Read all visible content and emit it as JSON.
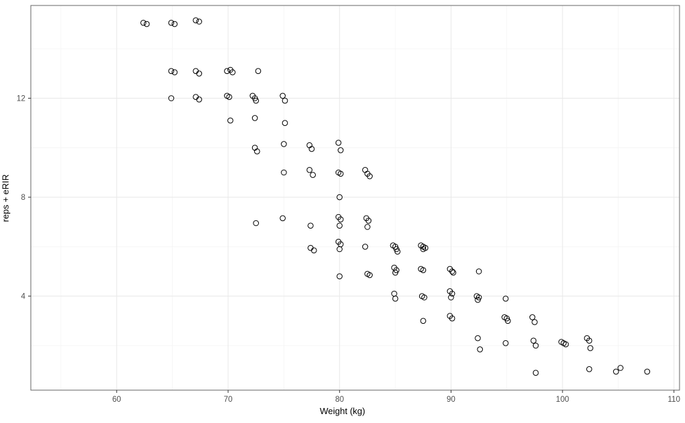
{
  "chart_data": {
    "type": "scatter",
    "title": "",
    "xlabel": "Weight (kg)",
    "ylabel": "reps + eRIR",
    "x_ticks": [
      60,
      70,
      80,
      90,
      100,
      110
    ],
    "y_ticks": [
      4,
      8,
      12
    ],
    "x_minor": [
      55,
      65,
      75,
      85,
      95,
      105
    ],
    "y_minor": [
      2,
      6,
      10,
      14
    ],
    "xlim": [
      52.3,
      110.5
    ],
    "ylim": [
      0.2,
      15.75
    ],
    "legend": "none",
    "grid": "major-and-faint-minor",
    "marker": "open-circle",
    "marker_radius_px": 3.8,
    "point_color": "#000000",
    "grid_major_color": "#e8e8e8",
    "grid_minor_color": "#f4f4f4",
    "panel_border_color": "#666666",
    "tick_color": "#333333",
    "tick_label_color": "#4d4d4d",
    "background": "#ffffff",
    "points": [
      [
        62.4,
        15.05
      ],
      [
        62.7,
        15.0
      ],
      [
        64.9,
        15.05
      ],
      [
        65.2,
        15.0
      ],
      [
        67.1,
        15.15
      ],
      [
        67.4,
        15.1
      ],
      [
        64.9,
        13.1
      ],
      [
        65.2,
        13.05
      ],
      [
        67.1,
        13.1
      ],
      [
        67.4,
        13.0
      ],
      [
        69.9,
        13.1
      ],
      [
        70.2,
        13.15
      ],
      [
        70.4,
        13.05
      ],
      [
        72.7,
        13.1
      ],
      [
        64.9,
        12.0
      ],
      [
        67.1,
        12.05
      ],
      [
        67.4,
        11.95
      ],
      [
        69.9,
        12.1
      ],
      [
        70.1,
        12.05
      ],
      [
        72.2,
        12.1
      ],
      [
        72.4,
        12.0
      ],
      [
        72.5,
        11.9
      ],
      [
        74.9,
        12.1
      ],
      [
        75.1,
        11.9
      ],
      [
        70.2,
        11.1
      ],
      [
        72.4,
        11.2
      ],
      [
        75.1,
        11.0
      ],
      [
        72.4,
        10.0
      ],
      [
        72.6,
        9.85
      ],
      [
        75.0,
        10.15
      ],
      [
        77.3,
        10.1
      ],
      [
        77.5,
        9.95
      ],
      [
        79.9,
        10.2
      ],
      [
        80.1,
        9.9
      ],
      [
        75.0,
        9.0
      ],
      [
        77.3,
        9.1
      ],
      [
        77.6,
        8.9
      ],
      [
        79.9,
        9.0
      ],
      [
        80.1,
        8.95
      ],
      [
        82.3,
        9.1
      ],
      [
        82.5,
        8.95
      ],
      [
        82.7,
        8.85
      ],
      [
        80.0,
        8.0
      ],
      [
        72.5,
        6.95
      ],
      [
        74.9,
        7.15
      ],
      [
        77.4,
        6.85
      ],
      [
        79.9,
        7.2
      ],
      [
        80.1,
        7.1
      ],
      [
        80.0,
        6.85
      ],
      [
        82.4,
        7.15
      ],
      [
        82.6,
        7.05
      ],
      [
        82.5,
        6.8
      ],
      [
        77.4,
        5.95
      ],
      [
        77.7,
        5.85
      ],
      [
        79.9,
        6.2
      ],
      [
        80.1,
        6.1
      ],
      [
        80.0,
        5.9
      ],
      [
        82.3,
        6.0
      ],
      [
        84.8,
        6.05
      ],
      [
        85.0,
        6.0
      ],
      [
        85.1,
        5.9
      ],
      [
        85.2,
        5.8
      ],
      [
        87.3,
        6.05
      ],
      [
        87.5,
        6.0
      ],
      [
        87.7,
        5.95
      ],
      [
        87.5,
        5.9
      ],
      [
        80.0,
        4.8
      ],
      [
        82.5,
        4.9
      ],
      [
        82.7,
        4.85
      ],
      [
        84.9,
        5.15
      ],
      [
        85.1,
        5.05
      ],
      [
        85.0,
        4.95
      ],
      [
        87.3,
        5.1
      ],
      [
        87.5,
        5.05
      ],
      [
        89.9,
        5.1
      ],
      [
        90.1,
        5.0
      ],
      [
        90.2,
        4.95
      ],
      [
        92.5,
        5.0
      ],
      [
        84.9,
        4.1
      ],
      [
        85.0,
        3.9
      ],
      [
        87.4,
        4.0
      ],
      [
        87.6,
        3.95
      ],
      [
        89.9,
        4.2
      ],
      [
        90.1,
        4.1
      ],
      [
        90.0,
        3.95
      ],
      [
        92.3,
        4.0
      ],
      [
        92.5,
        3.95
      ],
      [
        92.4,
        3.85
      ],
      [
        94.9,
        3.9
      ],
      [
        87.5,
        3.0
      ],
      [
        89.9,
        3.2
      ],
      [
        90.1,
        3.1
      ],
      [
        94.8,
        3.15
      ],
      [
        95.0,
        3.1
      ],
      [
        95.1,
        3.0
      ],
      [
        97.3,
        3.15
      ],
      [
        97.5,
        2.95
      ],
      [
        92.4,
        2.3
      ],
      [
        92.6,
        1.85
      ],
      [
        94.9,
        2.1
      ],
      [
        97.4,
        2.2
      ],
      [
        97.6,
        2.0
      ],
      [
        99.9,
        2.15
      ],
      [
        100.1,
        2.1
      ],
      [
        100.3,
        2.05
      ],
      [
        102.2,
        2.3
      ],
      [
        102.4,
        2.2
      ],
      [
        102.5,
        1.9
      ],
      [
        97.6,
        0.9
      ],
      [
        102.4,
        1.05
      ],
      [
        104.8,
        0.95
      ],
      [
        105.2,
        1.1
      ],
      [
        107.6,
        0.95
      ]
    ]
  }
}
